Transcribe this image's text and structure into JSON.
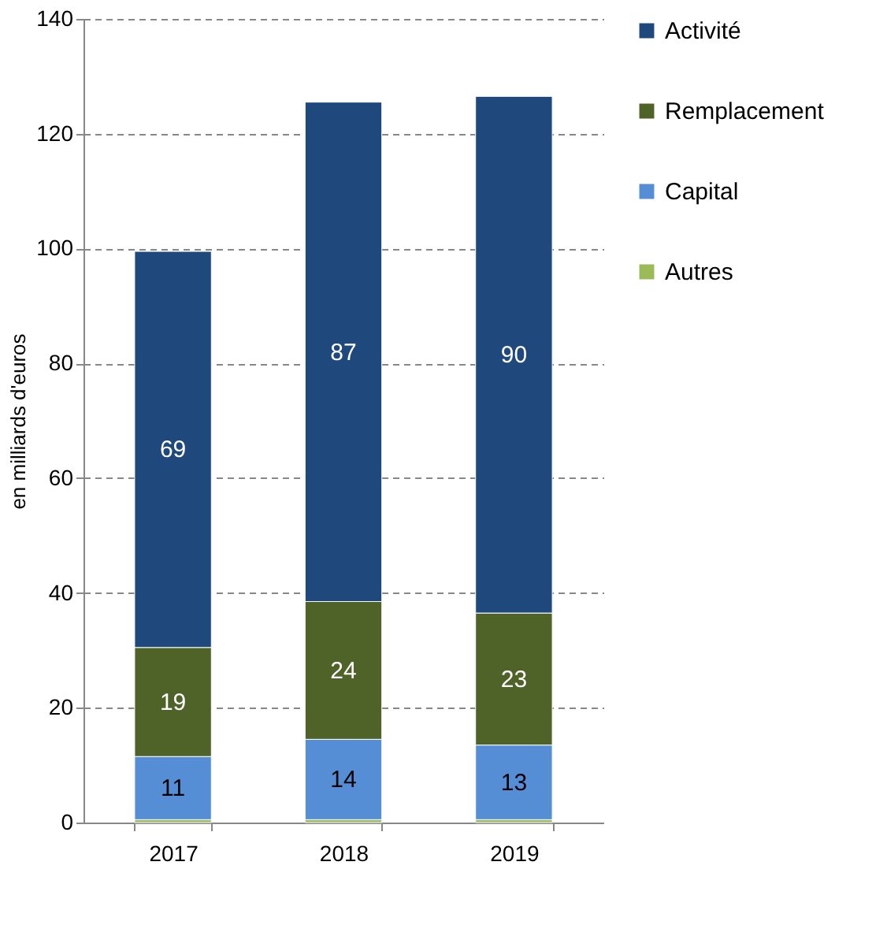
{
  "chart_data": {
    "type": "bar",
    "stacked": true,
    "ylabel": "en milliards d'euros",
    "categories": [
      "2017",
      "2018",
      "2019"
    ],
    "series": [
      {
        "name": "Autres",
        "color": "#9bbb59",
        "values": [
          0.5,
          0.5,
          0.5
        ],
        "value_labels": [
          null,
          null,
          null
        ]
      },
      {
        "name": "Capital",
        "color": "#558ed5",
        "values": [
          11,
          14,
          13
        ],
        "value_labels": [
          "11",
          "14",
          "13"
        ]
      },
      {
        "name": "Remplacement",
        "color": "#4f6228",
        "values": [
          19,
          24,
          23
        ],
        "value_labels": [
          "19",
          "24",
          "23"
        ]
      },
      {
        "name": "Activité",
        "color": "#1f497d",
        "values": [
          69,
          87,
          90
        ],
        "value_labels": [
          "69",
          "87",
          "90"
        ]
      }
    ],
    "ylim": [
      0,
      140
    ],
    "yticks": [
      0,
      20,
      40,
      60,
      80,
      100,
      120,
      140
    ],
    "grid": "y",
    "legend": "right"
  }
}
